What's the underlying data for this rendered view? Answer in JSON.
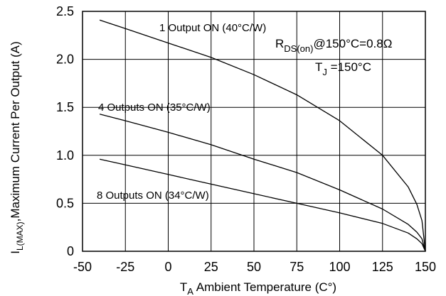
{
  "chart_data": {
    "type": "line",
    "title": "",
    "xlabel": {
      "main": "T",
      "sub": "A",
      "rest": " Ambient Temperature (C°)"
    },
    "ylabel": {
      "main": "I",
      "sub": "L(MAX)",
      "rest": ",Maximum Current Per Output (A)"
    },
    "xlim": [
      -50,
      150
    ],
    "ylim": [
      0,
      2.5
    ],
    "xticks": [
      -50,
      -25,
      0,
      25,
      50,
      75,
      100,
      125,
      150
    ],
    "xtick_labels": [
      "-50",
      "-25",
      "0",
      "25",
      "50",
      "75",
      "100",
      "125",
      "150"
    ],
    "yticks": [
      0,
      0.5,
      1.0,
      1.5,
      2.0,
      2.5
    ],
    "ytick_labels": [
      "0",
      "0.5",
      "1.0",
      "1.5",
      "2.0",
      "2.5"
    ],
    "grid": true,
    "series": [
      {
        "name": "1 Output ON (40°C/W)",
        "x": [
          -40,
          -25,
          0,
          25,
          50,
          75,
          100,
          125,
          140,
          145,
          148,
          150
        ],
        "y": [
          2.41,
          2.32,
          2.17,
          2.02,
          1.84,
          1.63,
          1.36,
          1.0,
          0.67,
          0.49,
          0.32,
          0.0
        ]
      },
      {
        "name": "4 Outputs ON (35°C/W)",
        "x": [
          -40,
          -25,
          0,
          25,
          50,
          75,
          100,
          125,
          140,
          145,
          148,
          150
        ],
        "y": [
          1.43,
          1.36,
          1.24,
          1.11,
          0.96,
          0.82,
          0.64,
          0.44,
          0.28,
          0.2,
          0.13,
          0.0
        ]
      },
      {
        "name": "8 Outputs ON (34°C/W)",
        "x": [
          -40,
          -25,
          0,
          25,
          50,
          75,
          100,
          125,
          140,
          145,
          148,
          150
        ],
        "y": [
          0.96,
          0.9,
          0.8,
          0.7,
          0.6,
          0.5,
          0.4,
          0.29,
          0.19,
          0.13,
          0.08,
          0.0
        ]
      }
    ],
    "annotations": [
      {
        "text": "1 Output ON (40°C/W)"
      },
      {
        "text": "4 Outputs ON (35°C/W)"
      },
      {
        "text": "8 Outputs ON (34°C/W)"
      }
    ],
    "conditions": {
      "rds_main": "R",
      "rds_sub": "DS(on)",
      "rds_rest": "@150°C=0.8Ω",
      "tj_main": "T",
      "tj_sub": "J",
      "tj_rest": " =150°C"
    }
  }
}
